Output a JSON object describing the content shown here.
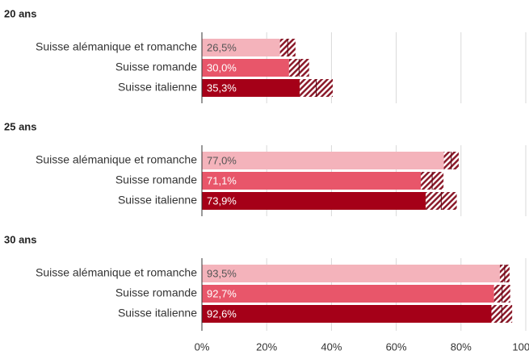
{
  "chart_data": {
    "type": "bar",
    "categories": [
      "Suisse alémanique et romanche",
      "Suisse romande",
      "Suisse italienne"
    ],
    "colors": [
      "#f4b3bb",
      "#e8566a",
      "#a50018"
    ],
    "panels": [
      {
        "title": "20 ans",
        "values": [
          26.5,
          30.0,
          35.3
        ],
        "errors": [
          2.4,
          3.1,
          5.1
        ],
        "value_labels": [
          "26,5%",
          "30,0%",
          "35,3%"
        ]
      },
      {
        "title": "25 ans",
        "values": [
          77.0,
          71.1,
          73.9
        ],
        "errors": [
          2.3,
          3.5,
          4.8
        ],
        "value_labels": [
          "77,0%",
          "71,1%",
          "73,9%"
        ]
      },
      {
        "title": "30 ans",
        "values": [
          93.5,
          92.7,
          92.6
        ],
        "errors": [
          1.5,
          2.5,
          3.2
        ],
        "value_labels": [
          "93,5%",
          "92,7%",
          "92,6%"
        ]
      }
    ],
    "xlim": [
      0,
      100
    ],
    "xticks": [
      {
        "value": 0,
        "label": "0%"
      },
      {
        "value": 20,
        "label": "20%"
      },
      {
        "value": 40,
        "label": "40%"
      },
      {
        "value": 60,
        "label": "60%"
      },
      {
        "value": 80,
        "label": "80%"
      },
      {
        "value": 100,
        "label": "100%"
      }
    ],
    "grid": true
  }
}
